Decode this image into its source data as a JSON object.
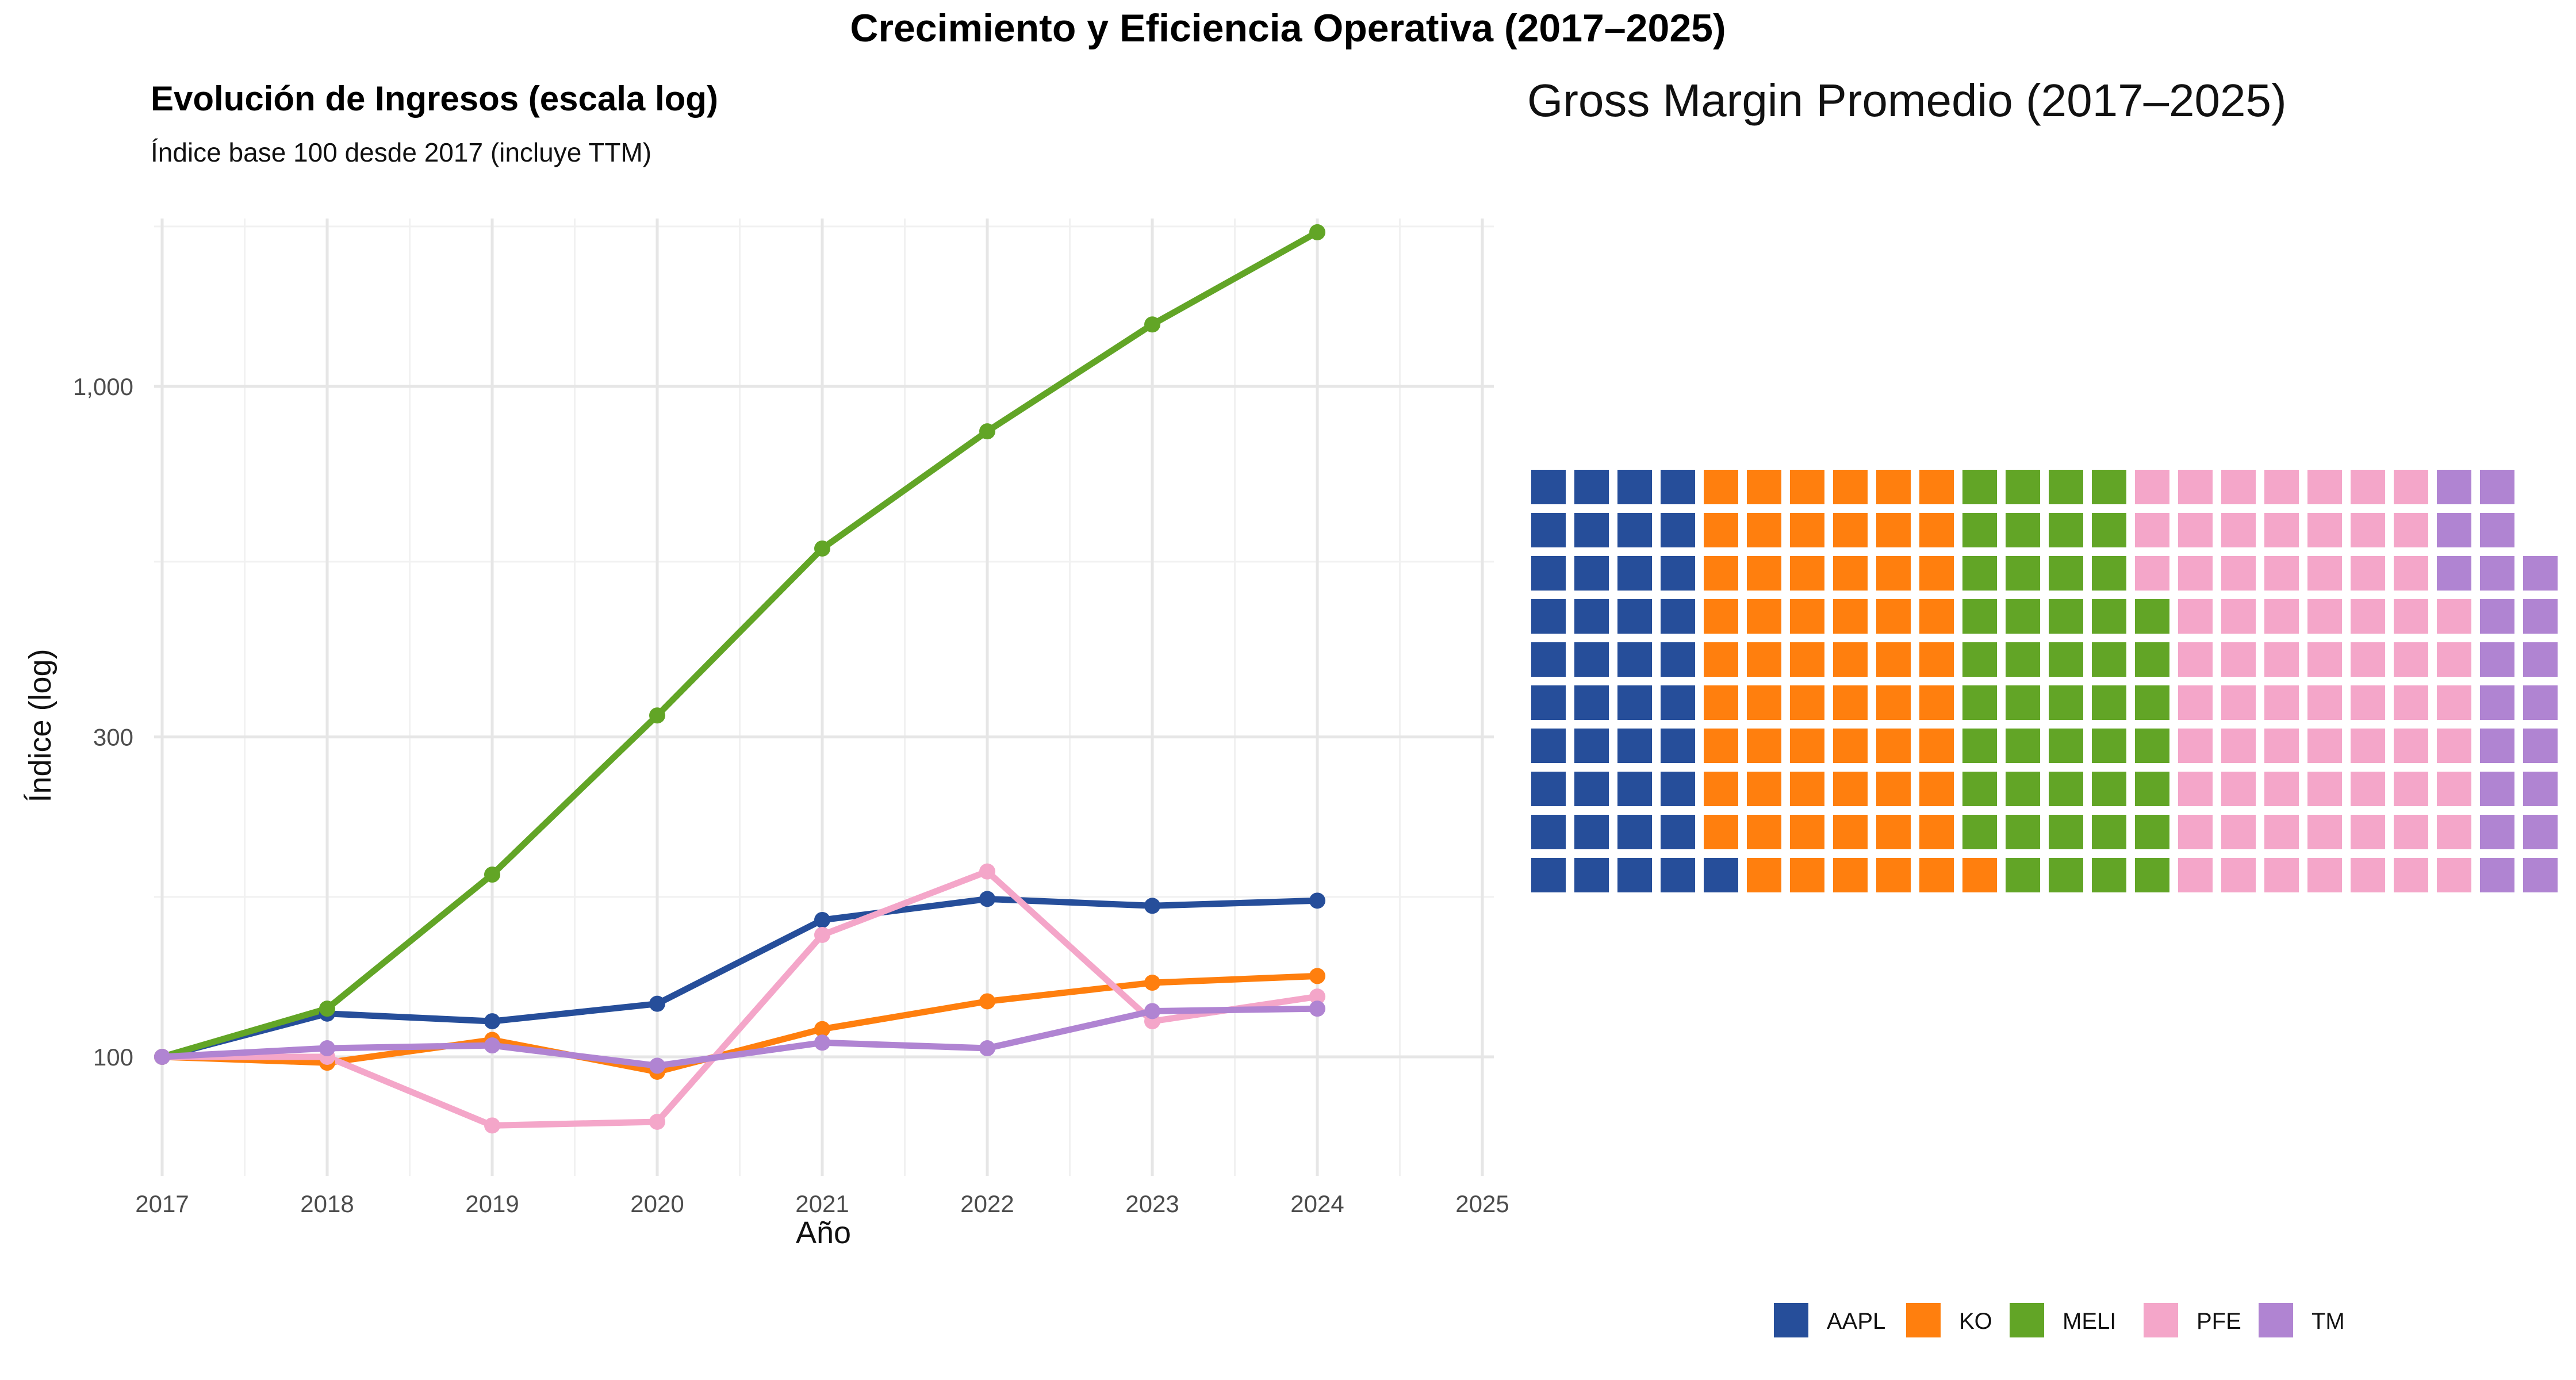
{
  "title": "Crecimiento y Eficiencia Operativa (2017–2025)",
  "colors": {
    "AAPL": "#264E9A",
    "KO": "#FF7F0E",
    "MELI": "#62A526",
    "PFE": "#F4A6C9",
    "TM": "#B084D2"
  },
  "chart_data": [
    {
      "type": "line",
      "title": "Evolución de Ingresos (escala log)",
      "subtitle": "Índice base 100 desde 2017 (incluye TTM)",
      "xlabel": "Año",
      "ylabel": "Índice (log)",
      "yscale": "log",
      "xlim": [
        2017,
        2025
      ],
      "ylim": [
        78,
        1650
      ],
      "x_ticks": [
        "2017",
        "2018",
        "2019",
        "2020",
        "2021",
        "2022",
        "2023",
        "2024",
        "2025"
      ],
      "y_ticks": [
        {
          "value": 100,
          "label": "100"
        },
        {
          "value": 300,
          "label": "300"
        },
        {
          "value": 1000,
          "label": "1,000"
        }
      ],
      "grid": true,
      "x": [
        2017,
        2018,
        2019,
        2020,
        2021,
        2022,
        2023,
        2024
      ],
      "series": [
        {
          "name": "AAPL",
          "values": [
            100,
            116,
            113,
            120,
            160,
            172,
            168,
            171
          ]
        },
        {
          "name": "KO",
          "values": [
            100,
            98,
            106,
            95,
            110,
            121,
            129,
            132
          ]
        },
        {
          "name": "MELI",
          "values": [
            100,
            118,
            187,
            323,
            573,
            857,
            1237,
            1698
          ]
        },
        {
          "name": "PFE",
          "values": [
            100,
            100,
            79,
            80,
            152,
            189,
            113,
            123
          ]
        },
        {
          "name": "TM",
          "values": [
            100,
            103,
            104,
            97,
            105,
            103,
            117,
            118
          ]
        }
      ]
    },
    {
      "type": "waffle",
      "title": "Gross Margin Promedio (2017–2025)",
      "rows": 10,
      "unit_counts": [
        {
          "name": "AAPL",
          "count": 41
        },
        {
          "name": "KO",
          "count": 60
        },
        {
          "name": "MELI",
          "count": 46
        },
        {
          "name": "PFE",
          "count": 70
        },
        {
          "name": "TM",
          "count": 21
        }
      ],
      "legend": [
        "AAPL",
        "KO",
        "MELI",
        "PFE",
        "TM"
      ],
      "legend_position": "bottom-right"
    }
  ]
}
